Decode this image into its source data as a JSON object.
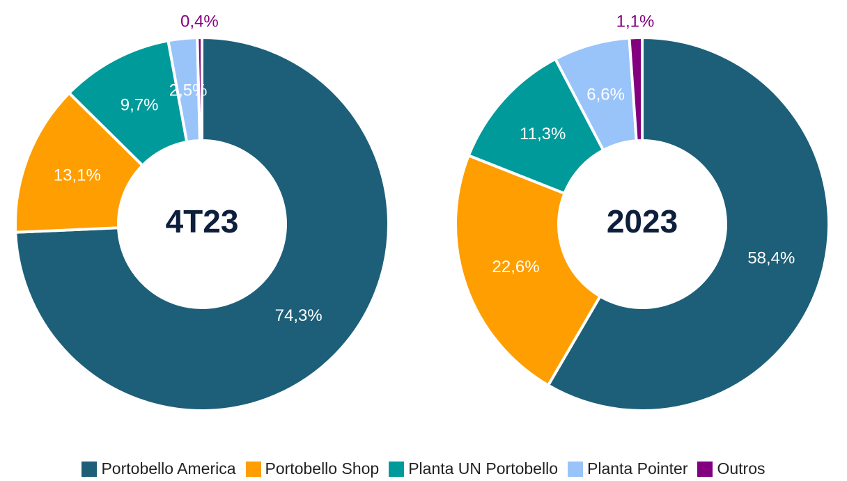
{
  "chart_data": [
    {
      "type": "pie",
      "title": "4T23",
      "categories": [
        "Portobello America",
        "Portobello Shop",
        "Planta UN Portobello",
        "Planta Pointer",
        "Outros"
      ],
      "values": [
        74.3,
        13.1,
        9.7,
        2.5,
        0.4
      ],
      "value_labels": [
        "74,3%",
        "13,1%",
        "9,7%",
        "2,5%",
        "0,4%"
      ],
      "colors": [
        "#1d5f78",
        "#ff9e00",
        "#009a9a",
        "#99c4fa",
        "#82007f"
      ]
    },
    {
      "type": "pie",
      "title": "2023",
      "categories": [
        "Portobello America",
        "Portobello Shop",
        "Planta UN Portobello",
        "Planta Pointer",
        "Outros"
      ],
      "values": [
        58.4,
        22.6,
        11.3,
        6.6,
        1.1
      ],
      "value_labels": [
        "58,4%",
        "22,6%",
        "11,3%",
        "6,6%",
        "1,1%"
      ],
      "colors": [
        "#1d5f78",
        "#ff9e00",
        "#009a9a",
        "#99c4fa",
        "#82007f"
      ]
    }
  ]
}
